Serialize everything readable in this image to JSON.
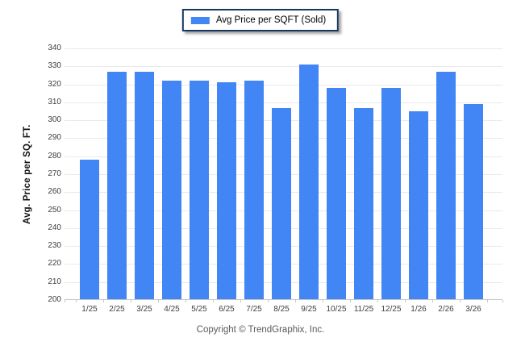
{
  "legend": {
    "label": "Avg Price per SQFT (Sold)"
  },
  "footer": {
    "copyright": "Copyright © TrendGraphix, Inc."
  },
  "colors": {
    "bar": "#4285f4",
    "legend_border": "#17375e",
    "gridline": "#e9e9e9",
    "axis_line": "#c6c6c6",
    "tick_label": "#404040",
    "copyright_text": "#595959"
  },
  "chart_data": {
    "type": "bar",
    "title": "",
    "legend_entries": [
      "Avg Price per SQFT (Sold)"
    ],
    "legend_position": "top-center",
    "categories": [
      "1/25",
      "2/25",
      "3/25",
      "4/25",
      "5/25",
      "6/25",
      "7/25",
      "8/25",
      "9/25",
      "10/25",
      "11/25",
      "12/25",
      "1/26",
      "2/26",
      "3/26"
    ],
    "values": [
      278,
      327,
      327,
      322,
      322,
      321,
      322,
      307,
      331,
      318,
      307,
      318,
      305,
      327,
      309
    ],
    "xlabel": "",
    "ylabel": "Avg. Price per SQ. FT.",
    "ylim": [
      200,
      340
    ],
    "ytick_step": 10,
    "grid": "horizontal",
    "bar_color": "#4285f4"
  }
}
